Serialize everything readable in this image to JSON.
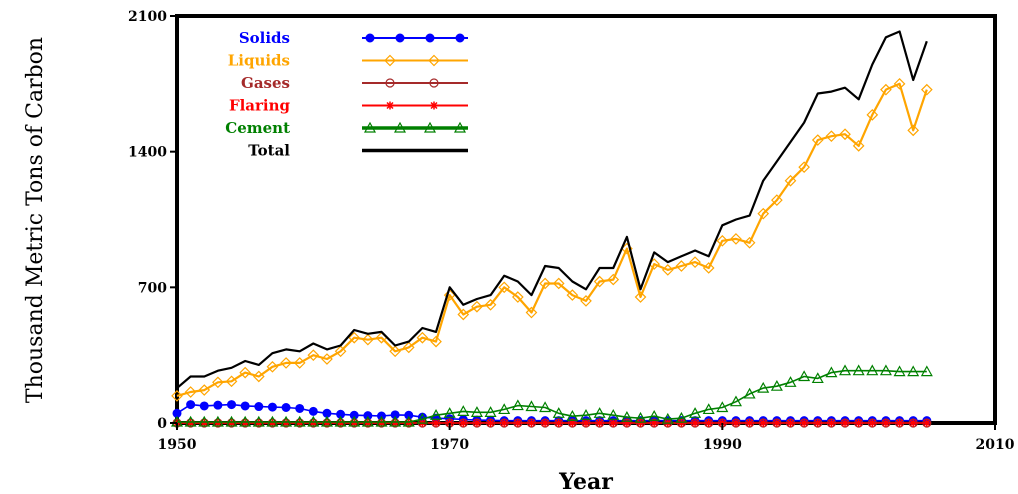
{
  "chart_data": {
    "type": "line",
    "xlabel": "Year",
    "ylabel": "Thousand Metric Tons of Carbon",
    "xlim": [
      1950,
      2010
    ],
    "ylim": [
      0,
      2100
    ],
    "xticks": [
      1950,
      1970,
      1990,
      2010
    ],
    "yticks": [
      0,
      700,
      1400,
      2100
    ],
    "x_tick_labels": [
      "1950",
      "1970",
      "1990",
      "2010"
    ],
    "y_tick_labels": [
      "0",
      "700",
      "1400",
      "2100"
    ],
    "grid": false,
    "legend_position": "top-left",
    "x": [
      1950,
      1951,
      1952,
      1953,
      1954,
      1955,
      1956,
      1957,
      1958,
      1959,
      1960,
      1961,
      1962,
      1963,
      1964,
      1965,
      1966,
      1967,
      1968,
      1969,
      1970,
      1971,
      1972,
      1973,
      1974,
      1975,
      1976,
      1977,
      1978,
      1979,
      1980,
      1981,
      1982,
      1983,
      1984,
      1985,
      1986,
      1987,
      1988,
      1989,
      1990,
      1991,
      1992,
      1993,
      1994,
      1995,
      1996,
      1997,
      1998,
      1999,
      2000,
      2001,
      2002,
      2003,
      2004,
      2005
    ],
    "series": [
      {
        "name": "Solids",
        "color": "#0000ff",
        "marker": "dot",
        "values": [
          50,
          95,
          88,
          92,
          95,
          88,
          85,
          82,
          80,
          75,
          60,
          50,
          45,
          40,
          38,
          36,
          42,
          40,
          30,
          25,
          22,
          18,
          15,
          14,
          12,
          12,
          12,
          12,
          12,
          12,
          12,
          12,
          12,
          12,
          12,
          12,
          12,
          12,
          12,
          12,
          12,
          12,
          12,
          12,
          12,
          12,
          12,
          12,
          12,
          12,
          12,
          12,
          12,
          12,
          12,
          12
        ]
      },
      {
        "name": "Liquids",
        "color": "#ffa500",
        "marker": "diamond",
        "values": [
          140,
          160,
          170,
          210,
          215,
          260,
          240,
          290,
          310,
          310,
          350,
          330,
          370,
          440,
          430,
          440,
          370,
          390,
          440,
          420,
          660,
          560,
          600,
          610,
          700,
          650,
          570,
          720,
          720,
          660,
          630,
          730,
          740,
          900,
          650,
          820,
          790,
          810,
          830,
          800,
          940,
          950,
          930,
          1080,
          1150,
          1250,
          1320,
          1460,
          1480,
          1490,
          1430,
          1590,
          1720,
          1750,
          1510,
          1720
        ]
      },
      {
        "name": "Gases",
        "color": "#a52a2a",
        "marker": "circle",
        "values": [
          0,
          0,
          0,
          0,
          0,
          0,
          0,
          0,
          0,
          0,
          0,
          0,
          0,
          0,
          0,
          0,
          0,
          0,
          0,
          0,
          0,
          0,
          0,
          0,
          0,
          0,
          0,
          0,
          0,
          0,
          0,
          0,
          0,
          0,
          0,
          0,
          0,
          0,
          0,
          0,
          0,
          0,
          0,
          0,
          0,
          0,
          0,
          0,
          0,
          0,
          0,
          0,
          0,
          0,
          0,
          0
        ]
      },
      {
        "name": "Flaring",
        "color": "#ff0000",
        "marker": "star",
        "values": [
          0,
          0,
          0,
          0,
          0,
          0,
          0,
          0,
          0,
          0,
          0,
          0,
          0,
          0,
          0,
          0,
          0,
          0,
          0,
          0,
          0,
          0,
          0,
          0,
          0,
          0,
          0,
          0,
          0,
          0,
          0,
          0,
          0,
          0,
          0,
          0,
          0,
          0,
          0,
          0,
          0,
          0,
          0,
          0,
          0,
          0,
          0,
          0,
          0,
          0,
          0,
          0,
          0,
          0,
          0,
          0
        ]
      },
      {
        "name": "Cement",
        "color": "#008000",
        "marker": "triangle",
        "values": [
          5,
          5,
          5,
          5,
          5,
          5,
          5,
          5,
          5,
          5,
          5,
          5,
          5,
          5,
          5,
          5,
          5,
          5,
          20,
          40,
          50,
          60,
          55,
          55,
          70,
          90,
          85,
          80,
          50,
          35,
          40,
          50,
          40,
          30,
          25,
          35,
          20,
          25,
          50,
          70,
          80,
          110,
          150,
          180,
          190,
          210,
          240,
          230,
          260,
          270,
          270,
          270,
          270,
          265,
          265,
          265
        ]
      },
      {
        "name": "Total",
        "color": "#000000",
        "marker": "none",
        "values": [
          180,
          240,
          240,
          270,
          285,
          320,
          300,
          360,
          380,
          370,
          410,
          380,
          400,
          480,
          460,
          470,
          400,
          420,
          490,
          470,
          700,
          610,
          640,
          660,
          760,
          730,
          660,
          810,
          800,
          730,
          690,
          800,
          800,
          960,
          690,
          880,
          830,
          860,
          890,
          860,
          1020,
          1050,
          1070,
          1250,
          1350,
          1450,
          1550,
          1700,
          1710,
          1730,
          1670,
          1850,
          1990,
          2020,
          1770,
          1970
        ]
      }
    ]
  }
}
